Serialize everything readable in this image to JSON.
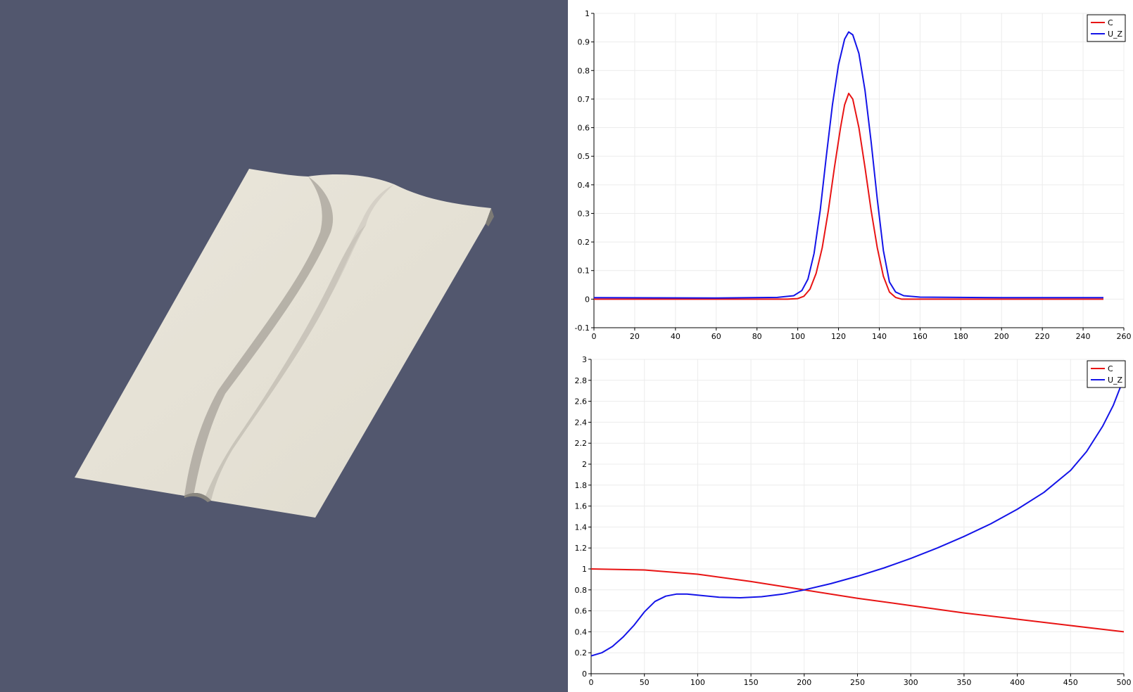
{
  "colors": {
    "render_background": "#52576e",
    "surface": "#e6e2d7",
    "series_c": "#e81414",
    "series_u_z": "#1414e8",
    "grid": "#ececec"
  },
  "render_view": {
    "object": "deformed-surface-with-ridge"
  },
  "chart_data": [
    {
      "type": "line",
      "title": "",
      "xlabel": "",
      "ylabel": "",
      "xlim": [
        0,
        260
      ],
      "ylim": [
        -0.1,
        1
      ],
      "x_ticks": [
        0,
        20,
        40,
        60,
        80,
        100,
        120,
        140,
        160,
        180,
        200,
        220,
        240,
        260
      ],
      "y_ticks": [
        -0.1,
        0,
        0.1,
        0.2,
        0.3,
        0.4,
        0.5,
        0.6,
        0.7,
        0.8,
        0.9,
        1
      ],
      "grid": true,
      "legend_position": "top-right",
      "series": [
        {
          "name": "C",
          "color": "#e81414",
          "points": [
            [
              0,
              0
            ],
            [
              60,
              0
            ],
            [
              95,
              0
            ],
            [
              100,
              0.002
            ],
            [
              103,
              0.01
            ],
            [
              106,
              0.035
            ],
            [
              109,
              0.09
            ],
            [
              112,
              0.18
            ],
            [
              115,
              0.31
            ],
            [
              118,
              0.46
            ],
            [
              121,
              0.6
            ],
            [
              123,
              0.68
            ],
            [
              125,
              0.72
            ],
            [
              127,
              0.7
            ],
            [
              130,
              0.6
            ],
            [
              133,
              0.46
            ],
            [
              136,
              0.31
            ],
            [
              139,
              0.18
            ],
            [
              142,
              0.08
            ],
            [
              145,
              0.025
            ],
            [
              148,
              0.006
            ],
            [
              151,
              0
            ],
            [
              160,
              0
            ],
            [
              200,
              0
            ],
            [
              250,
              0
            ]
          ]
        },
        {
          "name": "U_Z",
          "color": "#1414e8",
          "points": [
            [
              0,
              0.005
            ],
            [
              60,
              0.004
            ],
            [
              90,
              0.006
            ],
            [
              98,
              0.012
            ],
            [
              102,
              0.03
            ],
            [
              105,
              0.07
            ],
            [
              108,
              0.16
            ],
            [
              111,
              0.31
            ],
            [
              114,
              0.5
            ],
            [
              117,
              0.68
            ],
            [
              120,
              0.82
            ],
            [
              123,
              0.91
            ],
            [
              125,
              0.935
            ],
            [
              127,
              0.925
            ],
            [
              130,
              0.86
            ],
            [
              133,
              0.73
            ],
            [
              136,
              0.55
            ],
            [
              139,
              0.35
            ],
            [
              142,
              0.17
            ],
            [
              145,
              0.06
            ],
            [
              148,
              0.025
            ],
            [
              152,
              0.012
            ],
            [
              160,
              0.007
            ],
            [
              200,
              0.005
            ],
            [
              250,
              0.005
            ]
          ]
        }
      ]
    },
    {
      "type": "line",
      "title": "",
      "xlabel": "",
      "ylabel": "",
      "xlim": [
        0,
        500
      ],
      "ylim": [
        0,
        3
      ],
      "x_ticks": [
        0,
        50,
        100,
        150,
        200,
        250,
        300,
        350,
        400,
        450,
        500
      ],
      "y_ticks": [
        0,
        0.2,
        0.4,
        0.6,
        0.8,
        1,
        1.2,
        1.4,
        1.6,
        1.8,
        2,
        2.2,
        2.4,
        2.6,
        2.8,
        3
      ],
      "grid": true,
      "legend_position": "top-right",
      "series": [
        {
          "name": "C",
          "color": "#e81414",
          "points": [
            [
              0,
              1
            ],
            [
              50,
              0.99
            ],
            [
              100,
              0.95
            ],
            [
              150,
              0.88
            ],
            [
              200,
              0.8
            ],
            [
              250,
              0.72
            ],
            [
              300,
              0.65
            ],
            [
              350,
              0.58
            ],
            [
              400,
              0.52
            ],
            [
              450,
              0.46
            ],
            [
              500,
              0.4
            ]
          ]
        },
        {
          "name": "U_Z",
          "color": "#1414e8",
          "points": [
            [
              0,
              0.17
            ],
            [
              10,
              0.2
            ],
            [
              20,
              0.26
            ],
            [
              30,
              0.35
            ],
            [
              40,
              0.46
            ],
            [
              50,
              0.59
            ],
            [
              60,
              0.69
            ],
            [
              70,
              0.74
            ],
            [
              80,
              0.76
            ],
            [
              90,
              0.76
            ],
            [
              100,
              0.75
            ],
            [
              120,
              0.73
            ],
            [
              140,
              0.725
            ],
            [
              160,
              0.735
            ],
            [
              180,
              0.76
            ],
            [
              200,
              0.8
            ],
            [
              225,
              0.86
            ],
            [
              250,
              0.93
            ],
            [
              275,
              1.01
            ],
            [
              300,
              1.1
            ],
            [
              325,
              1.2
            ],
            [
              350,
              1.31
            ],
            [
              375,
              1.43
            ],
            [
              400,
              1.57
            ],
            [
              425,
              1.73
            ],
            [
              450,
              1.94
            ],
            [
              465,
              2.12
            ],
            [
              480,
              2.36
            ],
            [
              490,
              2.56
            ],
            [
              500,
              2.82
            ]
          ]
        }
      ]
    }
  ]
}
